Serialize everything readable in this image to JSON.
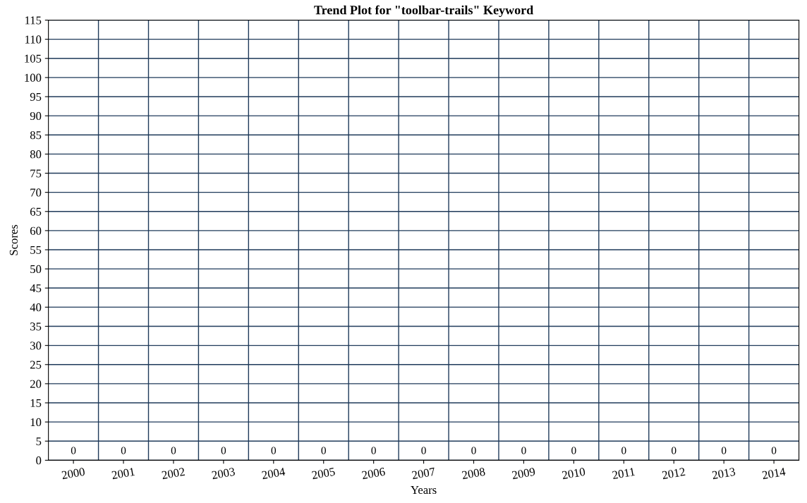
{
  "chart_data": {
    "type": "bar",
    "title": "Trend Plot for \"toolbar-trails\" Keyword",
    "xlabel": "Years",
    "ylabel": "Scores",
    "categories": [
      "2000",
      "2001",
      "2002",
      "2003",
      "2004",
      "2005",
      "2006",
      "2007",
      "2008",
      "2009",
      "2010",
      "2011",
      "2012",
      "2013",
      "2014"
    ],
    "values": [
      0,
      0,
      0,
      0,
      0,
      0,
      0,
      0,
      0,
      0,
      0,
      0,
      0,
      0,
      0
    ],
    "color": "#1f3a5a",
    "ylim": [
      0,
      115
    ],
    "yticks": [
      0,
      5,
      10,
      15,
      20,
      25,
      30,
      35,
      40,
      45,
      50,
      55,
      60,
      65,
      70,
      75,
      80,
      85,
      90,
      95,
      100,
      105,
      110,
      115
    ],
    "grid": true,
    "data_labels": true
  }
}
